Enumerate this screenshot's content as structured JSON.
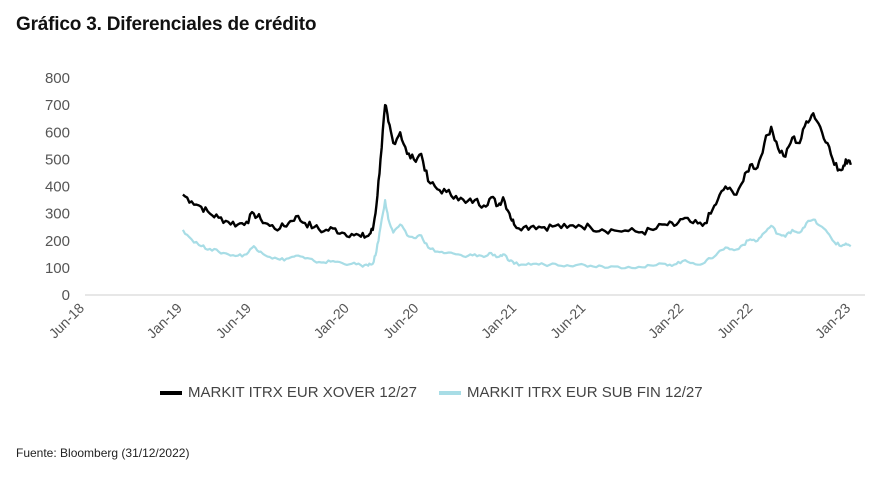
{
  "chart_data": {
    "type": "line",
    "title": "Gráfico 3. Diferenciales de crédito",
    "source": "Fuente: Bloomberg (31/12/2022)",
    "ylim": [
      0,
      800
    ],
    "yticks": [
      0,
      100,
      200,
      300,
      400,
      500,
      600,
      700,
      800
    ],
    "xlim": [
      "2018-06-01",
      "2023-01-31"
    ],
    "xticks": [
      {
        "date": "2018-06-01",
        "label": "Jun-18"
      },
      {
        "date": "2019-01-01",
        "label": "Jan-19"
      },
      {
        "date": "2019-06-01",
        "label": "Jun-19"
      },
      {
        "date": "2020-01-01",
        "label": "Jan-20"
      },
      {
        "date": "2020-06-01",
        "label": "Jun-20"
      },
      {
        "date": "2021-01-01",
        "label": "Jan-21"
      },
      {
        "date": "2021-06-01",
        "label": "Jun-21"
      },
      {
        "date": "2022-01-01",
        "label": "Jan-22"
      },
      {
        "date": "2022-06-01",
        "label": "Jun-22"
      },
      {
        "date": "2023-01-01",
        "label": "Jan-23"
      }
    ],
    "grid": false,
    "legend_position": "bottom",
    "series": [
      {
        "name": "MARKIT ITRX EUR XOVER 12/27",
        "color": "#000000",
        "points": [
          [
            "2019-01-01",
            370
          ],
          [
            "2019-01-20",
            345
          ],
          [
            "2019-02-10",
            325
          ],
          [
            "2019-03-01",
            300
          ],
          [
            "2019-03-20",
            285
          ],
          [
            "2019-04-10",
            270
          ],
          [
            "2019-05-01",
            260
          ],
          [
            "2019-05-20",
            270
          ],
          [
            "2019-06-05",
            300
          ],
          [
            "2019-06-20",
            280
          ],
          [
            "2019-07-10",
            255
          ],
          [
            "2019-08-01",
            245
          ],
          [
            "2019-08-20",
            265
          ],
          [
            "2019-09-05",
            290
          ],
          [
            "2019-09-25",
            265
          ],
          [
            "2019-10-15",
            250
          ],
          [
            "2019-11-05",
            235
          ],
          [
            "2019-11-25",
            245
          ],
          [
            "2019-12-15",
            230
          ],
          [
            "2020-01-05",
            225
          ],
          [
            "2020-01-25",
            215
          ],
          [
            "2020-02-10",
            218
          ],
          [
            "2020-02-20",
            240
          ],
          [
            "2020-02-28",
            330
          ],
          [
            "2020-03-08",
            500
          ],
          [
            "2020-03-18",
            700
          ],
          [
            "2020-03-25",
            640
          ],
          [
            "2020-04-05",
            560
          ],
          [
            "2020-04-20",
            600
          ],
          [
            "2020-05-05",
            520
          ],
          [
            "2020-05-20",
            500
          ],
          [
            "2020-06-05",
            520
          ],
          [
            "2020-06-20",
            420
          ],
          [
            "2020-07-10",
            390
          ],
          [
            "2020-07-30",
            380
          ],
          [
            "2020-08-20",
            365
          ],
          [
            "2020-09-10",
            340
          ],
          [
            "2020-09-30",
            350
          ],
          [
            "2020-10-20",
            330
          ],
          [
            "2020-11-05",
            360
          ],
          [
            "2020-11-20",
            330
          ],
          [
            "2020-12-01",
            360
          ],
          [
            "2020-12-15",
            300
          ],
          [
            "2020-12-25",
            260
          ],
          [
            "2021-01-15",
            250
          ],
          [
            "2021-02-05",
            255
          ],
          [
            "2021-03-01",
            250
          ],
          [
            "2021-03-25",
            255
          ],
          [
            "2021-04-20",
            248
          ],
          [
            "2021-05-15",
            258
          ],
          [
            "2021-06-10",
            250
          ],
          [
            "2021-07-05",
            242
          ],
          [
            "2021-08-01",
            238
          ],
          [
            "2021-09-01",
            236
          ],
          [
            "2021-10-01",
            232
          ],
          [
            "2021-10-25",
            240
          ],
          [
            "2021-11-20",
            260
          ],
          [
            "2021-12-10",
            255
          ],
          [
            "2021-12-28",
            280
          ],
          [
            "2022-01-20",
            265
          ],
          [
            "2022-02-10",
            255
          ],
          [
            "2022-02-28",
            300
          ],
          [
            "2022-03-15",
            350
          ],
          [
            "2022-04-01",
            400
          ],
          [
            "2022-04-20",
            370
          ],
          [
            "2022-05-10",
            420
          ],
          [
            "2022-05-25",
            480
          ],
          [
            "2022-06-10",
            470
          ],
          [
            "2022-06-25",
            560
          ],
          [
            "2022-07-10",
            620
          ],
          [
            "2022-07-25",
            540
          ],
          [
            "2022-08-10",
            510
          ],
          [
            "2022-08-25",
            580
          ],
          [
            "2022-09-10",
            560
          ],
          [
            "2022-09-25",
            640
          ],
          [
            "2022-10-10",
            670
          ],
          [
            "2022-10-25",
            620
          ],
          [
            "2022-11-10",
            560
          ],
          [
            "2022-11-25",
            480
          ],
          [
            "2022-12-10",
            460
          ],
          [
            "2022-12-20",
            500
          ],
          [
            "2022-12-31",
            480
          ]
        ]
      },
      {
        "name": "MARKIT ITRX EUR SUB FIN 12/27",
        "color": "#a8dde6",
        "points": [
          [
            "2019-01-01",
            240
          ],
          [
            "2019-01-20",
            205
          ],
          [
            "2019-02-10",
            180
          ],
          [
            "2019-03-01",
            170
          ],
          [
            "2019-03-20",
            160
          ],
          [
            "2019-04-10",
            150
          ],
          [
            "2019-05-01",
            145
          ],
          [
            "2019-05-20",
            150
          ],
          [
            "2019-06-05",
            180
          ],
          [
            "2019-06-20",
            160
          ],
          [
            "2019-07-10",
            140
          ],
          [
            "2019-08-01",
            130
          ],
          [
            "2019-08-20",
            135
          ],
          [
            "2019-09-05",
            145
          ],
          [
            "2019-09-25",
            135
          ],
          [
            "2019-10-15",
            125
          ],
          [
            "2019-11-05",
            120
          ],
          [
            "2019-11-25",
            125
          ],
          [
            "2019-12-15",
            118
          ],
          [
            "2020-01-05",
            115
          ],
          [
            "2020-01-25",
            110
          ],
          [
            "2020-02-10",
            108
          ],
          [
            "2020-02-20",
            115
          ],
          [
            "2020-02-28",
            160
          ],
          [
            "2020-03-08",
            250
          ],
          [
            "2020-03-18",
            350
          ],
          [
            "2020-03-25",
            280
          ],
          [
            "2020-04-05",
            230
          ],
          [
            "2020-04-20",
            260
          ],
          [
            "2020-05-05",
            220
          ],
          [
            "2020-05-20",
            210
          ],
          [
            "2020-06-05",
            220
          ],
          [
            "2020-06-20",
            175
          ],
          [
            "2020-07-10",
            160
          ],
          [
            "2020-07-30",
            155
          ],
          [
            "2020-08-20",
            150
          ],
          [
            "2020-09-10",
            140
          ],
          [
            "2020-09-30",
            150
          ],
          [
            "2020-10-20",
            140
          ],
          [
            "2020-11-05",
            155
          ],
          [
            "2020-11-20",
            140
          ],
          [
            "2020-12-01",
            150
          ],
          [
            "2020-12-15",
            125
          ],
          [
            "2020-12-25",
            115
          ],
          [
            "2021-01-15",
            112
          ],
          [
            "2021-02-05",
            115
          ],
          [
            "2021-03-01",
            112
          ],
          [
            "2021-03-25",
            115
          ],
          [
            "2021-04-20",
            110
          ],
          [
            "2021-05-15",
            112
          ],
          [
            "2021-06-10",
            108
          ],
          [
            "2021-07-05",
            106
          ],
          [
            "2021-08-01",
            105
          ],
          [
            "2021-09-01",
            104
          ],
          [
            "2021-10-01",
            102
          ],
          [
            "2021-10-25",
            108
          ],
          [
            "2021-11-20",
            115
          ],
          [
            "2021-12-10",
            112
          ],
          [
            "2021-12-28",
            125
          ],
          [
            "2022-01-20",
            118
          ],
          [
            "2022-02-10",
            115
          ],
          [
            "2022-02-28",
            135
          ],
          [
            "2022-03-15",
            155
          ],
          [
            "2022-04-01",
            175
          ],
          [
            "2022-04-20",
            165
          ],
          [
            "2022-05-10",
            185
          ],
          [
            "2022-05-25",
            205
          ],
          [
            "2022-06-10",
            200
          ],
          [
            "2022-06-25",
            230
          ],
          [
            "2022-07-10",
            255
          ],
          [
            "2022-07-25",
            225
          ],
          [
            "2022-08-10",
            215
          ],
          [
            "2022-08-25",
            240
          ],
          [
            "2022-09-10",
            230
          ],
          [
            "2022-09-25",
            265
          ],
          [
            "2022-10-10",
            278
          ],
          [
            "2022-10-25",
            255
          ],
          [
            "2022-11-10",
            230
          ],
          [
            "2022-11-25",
            195
          ],
          [
            "2022-12-10",
            180
          ],
          [
            "2022-12-20",
            190
          ],
          [
            "2022-12-31",
            180
          ]
        ]
      }
    ]
  }
}
